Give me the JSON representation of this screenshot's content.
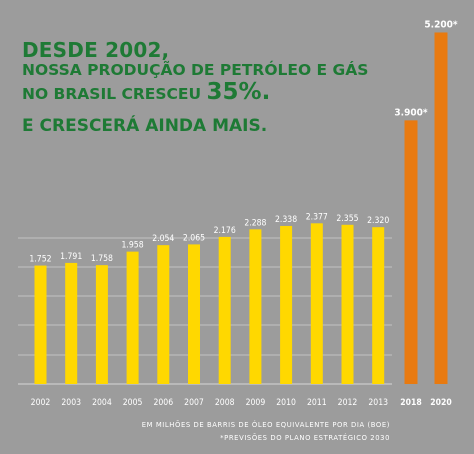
{
  "headline": {
    "line1": "DESDE 2002,",
    "line2": "NOSSA PRODUÇÃO DE PETRÓLEO E GÁS",
    "line3_text": "NO BRASIL CRESCEU ",
    "line3_pct": "35%.",
    "line4": "E CRESCERÁ AINDA MAIS."
  },
  "footnotes": {
    "unit": "EM MILHÕES DE BARRIS DE ÓLEO EQUIVALENTE POR DIA (BOE)",
    "forecast": "*PREVISÕES DO PLANO ESTRATÉGICO 2030"
  },
  "colors": {
    "background": "#9c9c9c",
    "historical_bar": "#ffd800",
    "forecast_bar": "#e87a10",
    "headline_green": "#1e7a35",
    "gridline": "#c2c2c2"
  },
  "chart_data": {
    "type": "bar",
    "grid": true,
    "series": [
      {
        "values": [
          1752,
          1791,
          1758,
          1958,
          2054,
          2065,
          2176,
          2288,
          2338,
          2377,
          2355,
          2320
        ],
        "x": [
          "2002",
          "2003",
          "2004",
          "2005",
          "2006",
          "2007",
          "2008",
          "2009",
          "2010",
          "2011",
          "2012",
          "2013"
        ],
        "labels": [
          "1.752",
          "1.791",
          "1.758",
          "1.958",
          "2.054",
          "2.065",
          "2.176",
          "2.288",
          "2.338",
          "2.377",
          "2.355",
          "2.320"
        ],
        "color": "#ffd800"
      },
      {
        "values": [
          3900,
          5200
        ],
        "x": [
          "2018",
          "2020"
        ],
        "labels": [
          "3.900*",
          "5.200*"
        ],
        "color": "#e87a10"
      }
    ]
  }
}
